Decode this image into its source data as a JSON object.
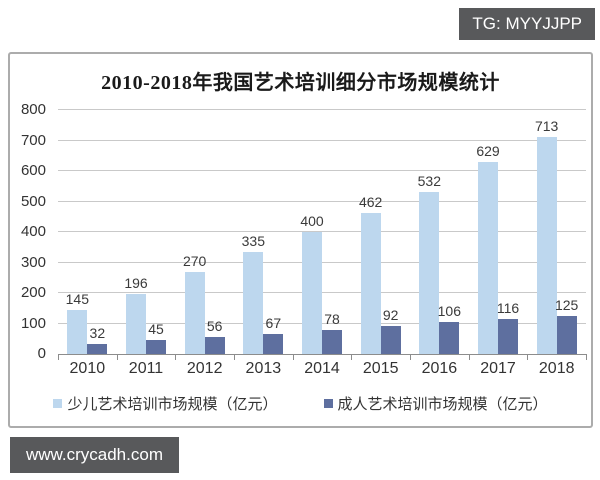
{
  "watermarks": {
    "top": "TG: MYYJJPP",
    "bottom": "www.crycadh.com"
  },
  "chart": {
    "colors": {
      "frame_border": "#acacac",
      "badge_bg": "#58595b",
      "grid": "#c9c9c9",
      "axis": "#8c8c8c",
      "text": "#333333"
    }
  },
  "chart_data": {
    "type": "bar",
    "title": "2010-2018年我国艺术培训细分市场规模统计",
    "categories": [
      "2010",
      "2011",
      "2012",
      "2013",
      "2014",
      "2015",
      "2016",
      "2017",
      "2018"
    ],
    "series": [
      {
        "name": "少儿艺术培训市场规模（亿元）",
        "color": "#bdd7ee",
        "values": [
          145,
          196,
          270,
          335,
          400,
          462,
          532,
          629,
          713
        ]
      },
      {
        "name": "成人艺术培训市场规模（亿元）",
        "color": "#5e6f9f",
        "values": [
          32,
          45,
          56,
          67,
          78,
          92,
          106,
          116,
          125
        ]
      }
    ],
    "xlabel": "",
    "ylabel": "",
    "ylim": [
      0,
      800
    ],
    "yticks": [
      0,
      100,
      200,
      300,
      400,
      500,
      600,
      700,
      800
    ],
    "grid": true,
    "legend_position": "bottom"
  }
}
